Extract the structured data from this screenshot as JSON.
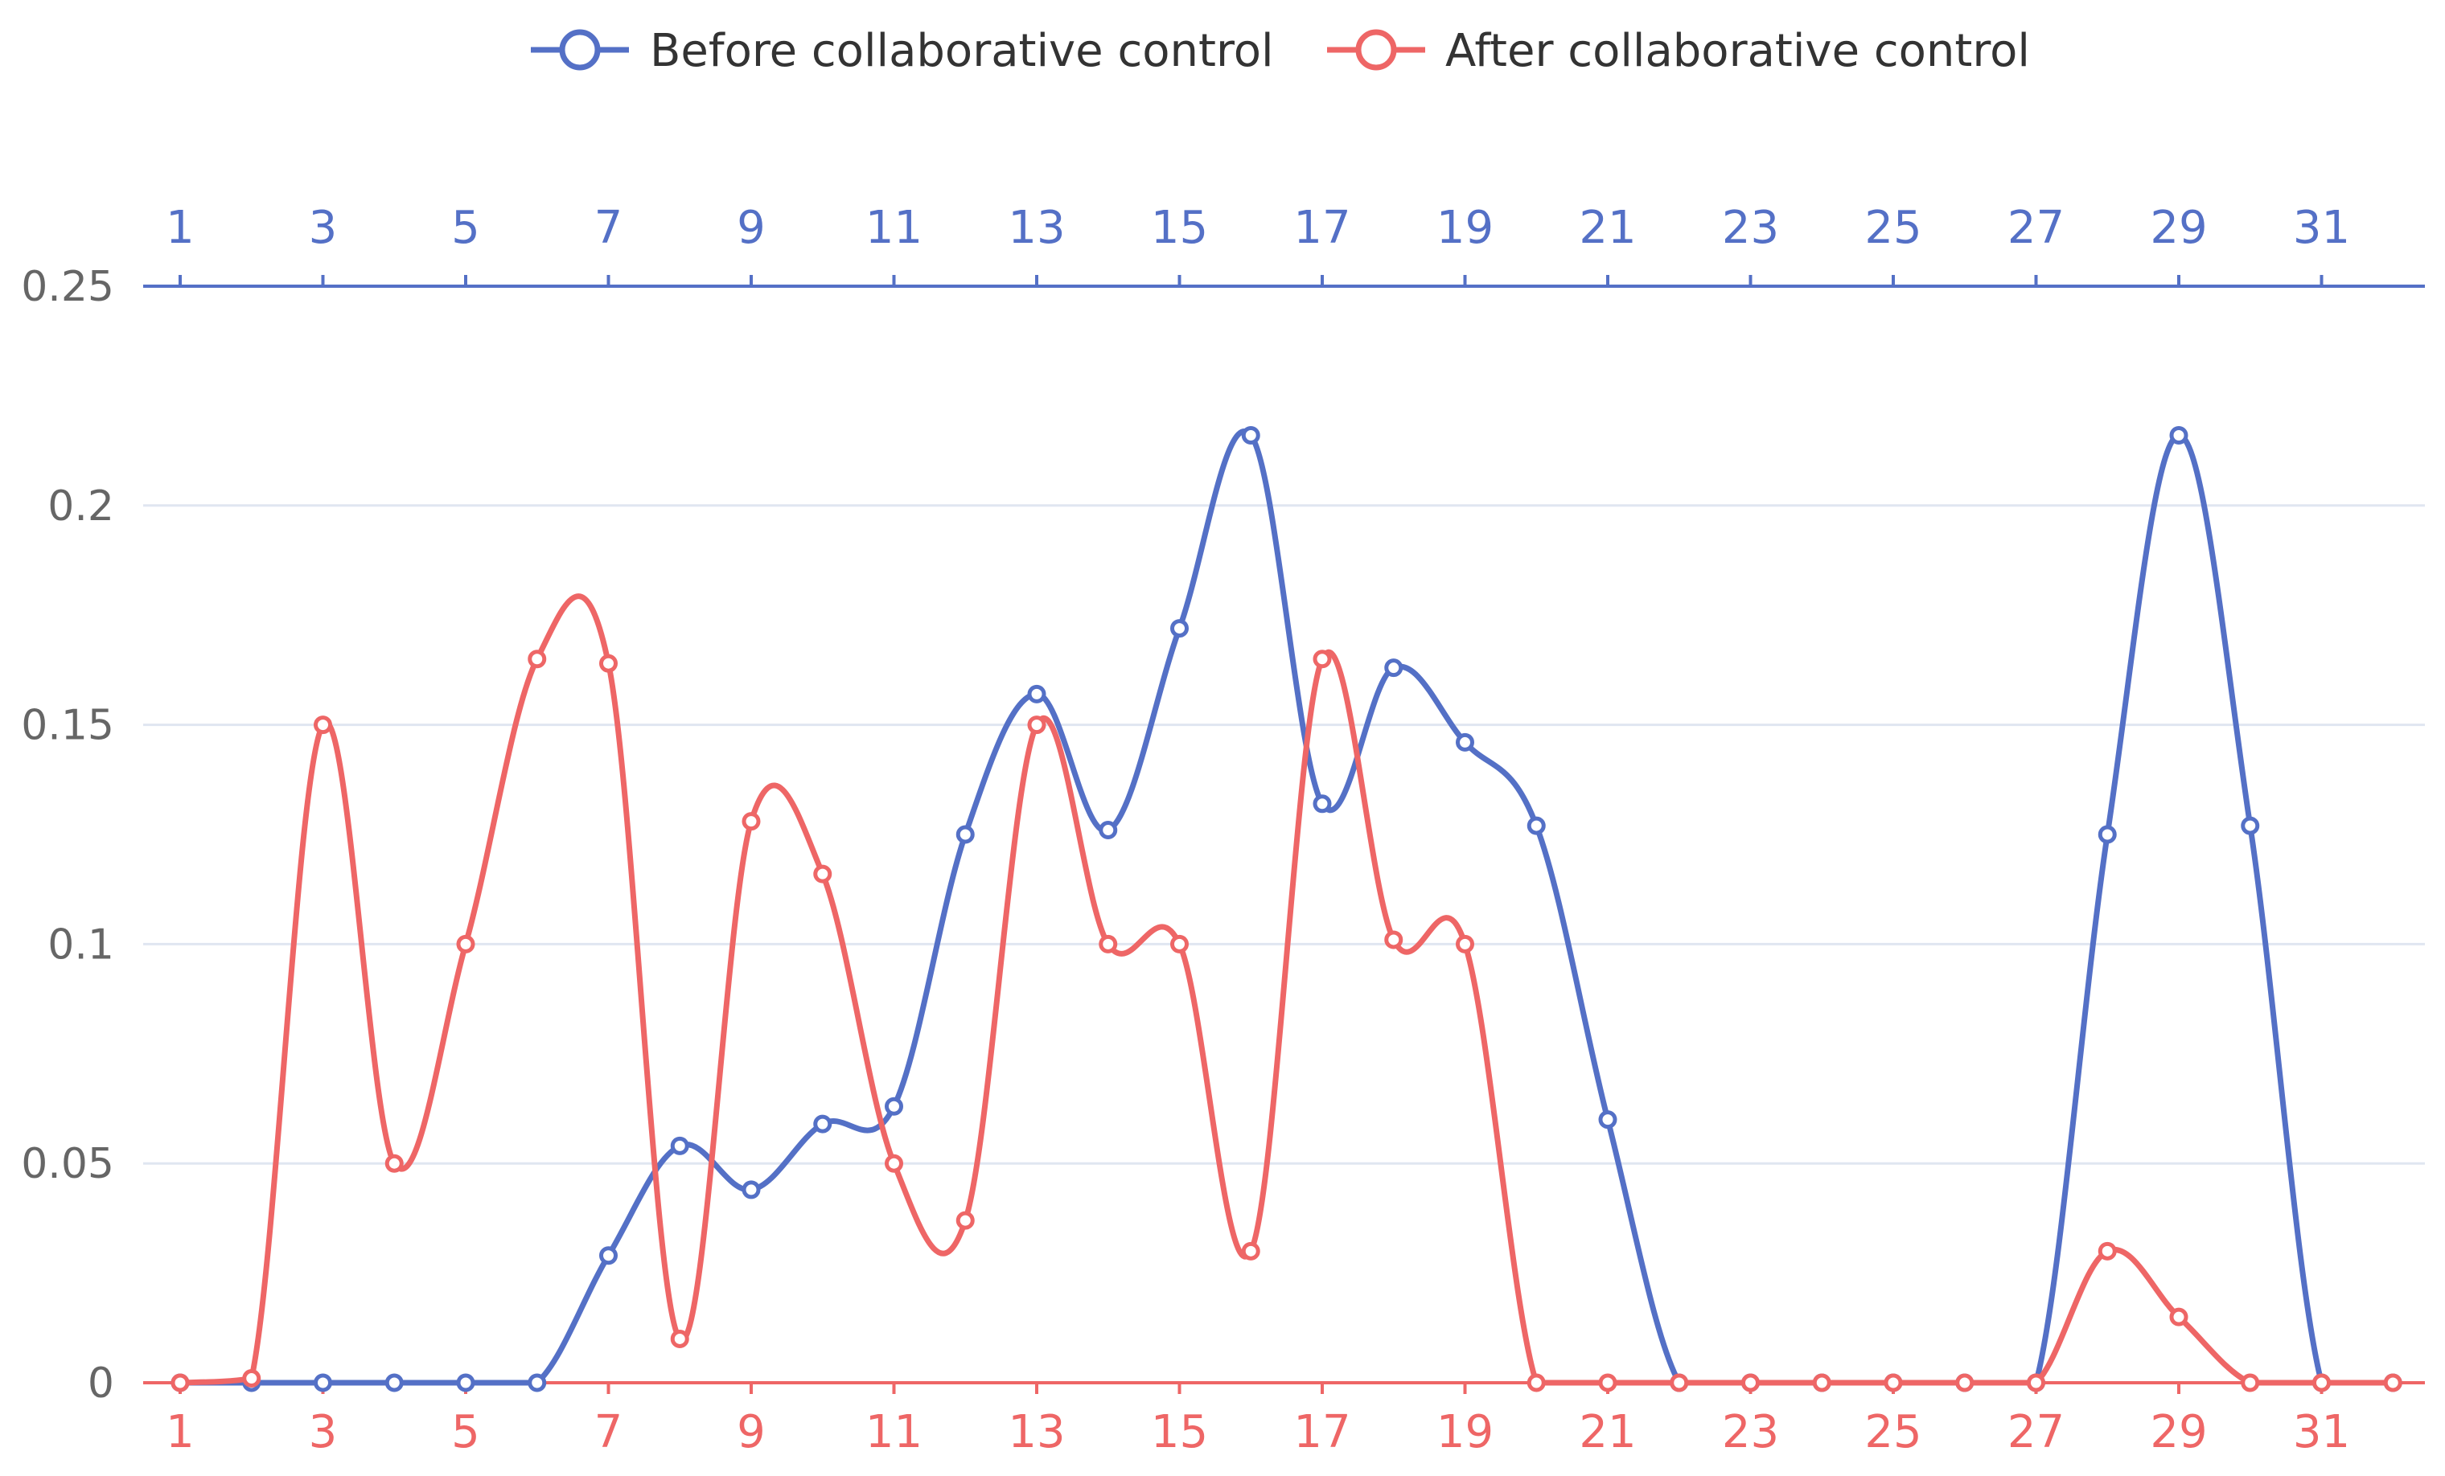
{
  "chart_data": {
    "type": "line",
    "smooth": true,
    "x": [
      1,
      2,
      3,
      4,
      5,
      6,
      7,
      8,
      9,
      10,
      11,
      12,
      13,
      14,
      15,
      16,
      17,
      18,
      19,
      20,
      21,
      22,
      23,
      24,
      25,
      26,
      27,
      28,
      29,
      30,
      31,
      32
    ],
    "x_tick_labels": [
      "1",
      "3",
      "5",
      "7",
      "9",
      "11",
      "13",
      "15",
      "17",
      "19",
      "21",
      "23",
      "25",
      "27",
      "29",
      "31"
    ],
    "y_tick_labels": [
      "0",
      "0.05",
      "0.1",
      "0.15",
      "0.2",
      "0.25"
    ],
    "ylim": [
      0,
      0.25
    ],
    "grid": true,
    "legend_position": "top-center",
    "x_axes": [
      "top (blue, Before collaborative control)",
      "bottom (red, After collaborative control)"
    ],
    "series": [
      {
        "name": "Before collaborative control",
        "color": "#5470c6",
        "axis": "top",
        "values": [
          0,
          0,
          0,
          0,
          0,
          0,
          0.029,
          0.054,
          0.044,
          0.059,
          0.063,
          0.125,
          0.157,
          0.126,
          0.172,
          0.216,
          0.132,
          0.163,
          0.146,
          0.127,
          0.06,
          0,
          0,
          0,
          0,
          0,
          0,
          0.125,
          0.216,
          0.127,
          0,
          0
        ]
      },
      {
        "name": "After collaborative control",
        "color": "#ee6666",
        "axis": "bottom",
        "values": [
          0,
          0.001,
          0.15,
          0.05,
          0.1,
          0.165,
          0.164,
          0.01,
          0.128,
          0.116,
          0.05,
          0.037,
          0.15,
          0.1,
          0.1,
          0.03,
          0.165,
          0.101,
          0.1,
          0,
          0,
          0,
          0,
          0,
          0,
          0,
          0,
          0.03,
          0.015,
          0,
          0,
          0
        ]
      }
    ]
  }
}
